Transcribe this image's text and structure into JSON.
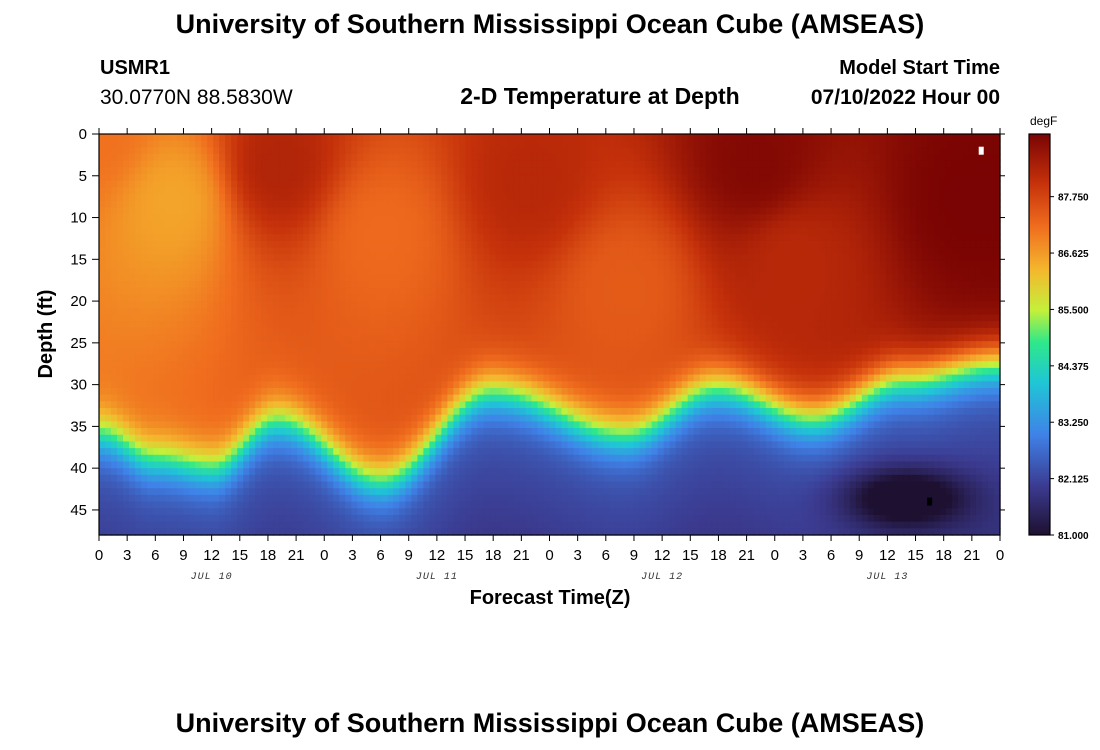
{
  "header": {
    "title": "University of Southern Mississippi Ocean Cube (AMSEAS)",
    "station_id": "USMR1",
    "coordinates": "30.0770N  88.5830W",
    "plot_title": "2-D Temperature at Depth",
    "model_start_label": "Model Start Time",
    "model_start_value": "07/10/2022 Hour 00"
  },
  "footer": {
    "title": "University of Southern Mississippi Ocean Cube (AMSEAS)"
  },
  "chart_data": {
    "type": "heatmap",
    "title": "2-D Temperature at Depth",
    "xlabel": "Forecast Time(Z)",
    "ylabel": "Depth (ft)",
    "x_range_hours": [
      0,
      96
    ],
    "y_range_ft": [
      0,
      48
    ],
    "x_tick_step_hours": 3,
    "x_tick_labels": [
      "0",
      "3",
      "6",
      "9",
      "12",
      "15",
      "18",
      "21",
      "0",
      "3",
      "6",
      "9",
      "12",
      "15",
      "18",
      "21",
      "0",
      "3",
      "6",
      "9",
      "12",
      "15",
      "18",
      "21",
      "0",
      "3",
      "6",
      "9",
      "12",
      "15",
      "18",
      "21",
      "0"
    ],
    "day_labels": [
      {
        "label": "JUL 10",
        "hour": 12
      },
      {
        "label": "JUL 11",
        "hour": 36
      },
      {
        "label": "JUL 12",
        "hour": 60
      },
      {
        "label": "JUL 13",
        "hour": 84
      }
    ],
    "y_ticks": [
      0,
      5,
      10,
      15,
      20,
      25,
      30,
      35,
      40,
      45
    ],
    "colorbar": {
      "unit": "degF",
      "min": 81.0,
      "max": 89.0,
      "tick_values": [
        81.0,
        82.125,
        83.25,
        84.375,
        85.5,
        86.625,
        87.75
      ],
      "tick_labels": [
        "81.000",
        "82.125",
        "83.250",
        "84.375",
        "85.500",
        "86.625",
        "87.750"
      ],
      "colors": [
        "#1e1030",
        "#3b3a8f",
        "#3f82e8",
        "#1fc6d6",
        "#2ee88a",
        "#c4f03a",
        "#f4b82e",
        "#f06c1e",
        "#c4300a",
        "#7a0403"
      ]
    },
    "thermocline_depth_ft": [
      {
        "hour": 0,
        "depth": 36
      },
      {
        "hour": 6,
        "depth": 39
      },
      {
        "hour": 12,
        "depth": 40
      },
      {
        "hour": 19,
        "depth": 34.5
      },
      {
        "hour": 30,
        "depth": 41.5
      },
      {
        "hour": 42,
        "depth": 31
      },
      {
        "hour": 56,
        "depth": 36
      },
      {
        "hour": 66,
        "depth": 30.5
      },
      {
        "hour": 76,
        "depth": 34
      },
      {
        "hour": 86,
        "depth": 29.5
      },
      {
        "hour": 96,
        "depth": 27.5
      }
    ],
    "upper_temperature_field": [
      {
        "hour": 0,
        "depth": 0,
        "value": 87.1
      },
      {
        "hour": 8,
        "depth": 8,
        "value": 86.5
      },
      {
        "hour": 19,
        "depth": 4,
        "value": 88.3
      },
      {
        "hour": 30,
        "depth": 12,
        "value": 87.2
      },
      {
        "hour": 46,
        "depth": 6,
        "value": 88.2
      },
      {
        "hour": 56,
        "depth": 18,
        "value": 87.4
      },
      {
        "hour": 70,
        "depth": 4,
        "value": 88.9
      },
      {
        "hour": 74,
        "depth": 15,
        "value": 88.2
      },
      {
        "hour": 93,
        "depth": 8,
        "value": 89.0
      }
    ],
    "deep_minimum": {
      "hour": 86,
      "depth": 43.5,
      "value": 81.0
    },
    "markers": [
      {
        "color": "#ffffff",
        "hour": 94,
        "depth": 2
      },
      {
        "color": "#000000",
        "hour": 88.5,
        "depth": 44
      }
    ]
  }
}
